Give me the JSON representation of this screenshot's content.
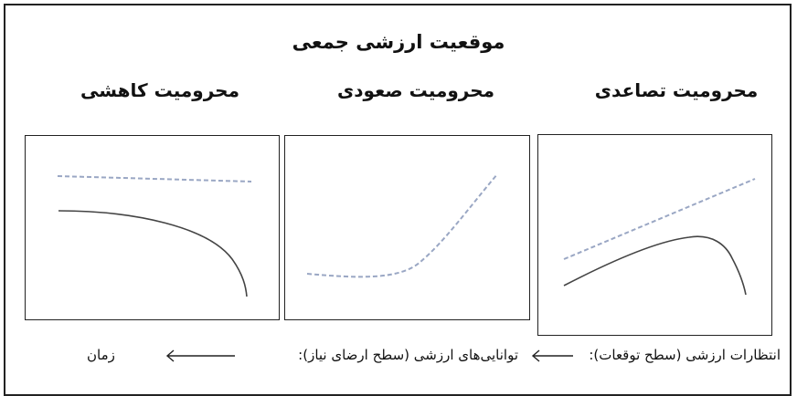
{
  "title": "موقعیت ارزشی جمعی",
  "panels": [
    {
      "label": "محرومیت تصاعدی"
    },
    {
      "label": "محرومیت صعودی"
    },
    {
      "label": "محرومیت کاهشی"
    }
  ],
  "legend": {
    "expectations": "انتظارات ارزشی (سطح توقعات):",
    "capabilities": "توانایی‌های ارزشی (سطح ارضای نیاز):",
    "time": "زمان"
  },
  "colors": {
    "dashed": "#9aa7c4",
    "solid": "#444444",
    "border": "#222222"
  }
}
